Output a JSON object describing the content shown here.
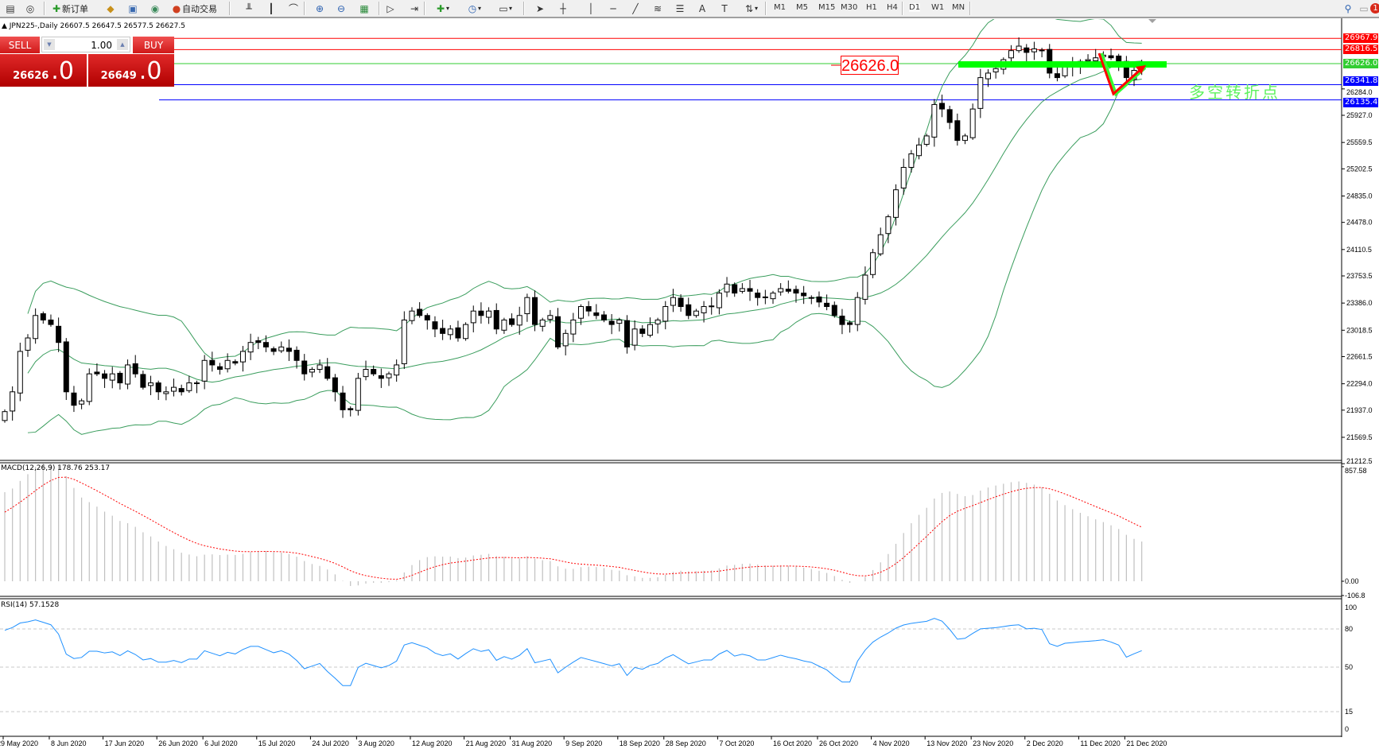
{
  "toolbar": {
    "new_order": "新订单",
    "auto_trading": "自动交易",
    "timeframes": [
      "M1",
      "M5",
      "M15",
      "M30",
      "H1",
      "H4",
      "D1",
      "W1",
      "MN"
    ],
    "active_timeframe": "D1",
    "notification_count": "1",
    "icons": [
      "new-chart-icon",
      "profiles-icon",
      "new-order-icon",
      "market-watch-icon",
      "navigator-icon",
      "signals-icon",
      "auto-trading-icon",
      "bar-chart-icon",
      "candlestick-icon",
      "line-chart-icon",
      "zoom-in-icon",
      "zoom-out-icon",
      "tile-windows-icon",
      "auto-scroll-icon",
      "chart-shift-icon",
      "indicators-icon",
      "periods-icon",
      "templates-icon",
      "cursor-icon",
      "crosshair-icon",
      "vertical-line-icon",
      "horizontal-line-icon",
      "trendline-icon",
      "fibonacci-icon",
      "channel-icon",
      "text-icon",
      "text-label-icon",
      "arrows-icon",
      "search-icon",
      "notifications-icon"
    ]
  },
  "chart": {
    "title": "▲ JPN225-,Daily  26607.5 26647.5 26577.5 26627.5",
    "symbol": "JPN225-",
    "period": "Daily",
    "ohlc": {
      "open": 26607.5,
      "high": 26647.5,
      "low": 26577.5,
      "close": 26627.5
    }
  },
  "trade_panel": {
    "sell_label": "SELL",
    "buy_label": "BUY",
    "lot": "1.00",
    "sell_small": "26626",
    "sell_big": ".0",
    "buy_small": "26649",
    "buy_big": ".0",
    "color": "#d01818"
  },
  "levels": [
    {
      "value": "26967.9",
      "color": "#ff0000"
    },
    {
      "value": "26816.5",
      "color": "#ff0000"
    },
    {
      "value": "26626.0",
      "color": "#32cd32"
    },
    {
      "value": "26341.8",
      "color": "#0000ff"
    },
    {
      "value": "26135.4",
      "color": "#0000ff"
    }
  ],
  "annotations": {
    "price_label": "26626.0",
    "text": "多空转折点",
    "zone_color": "#00ff00",
    "arrow_color": "#ff0000"
  },
  "price_axis": [
    "26284.0",
    "25927.0",
    "25559.5",
    "25202.5",
    "24835.0",
    "24478.0",
    "24110.5",
    "23753.5",
    "23386.0",
    "23018.5",
    "22661.5",
    "22294.0",
    "21937.0",
    "21569.5",
    "21212.5"
  ],
  "macd": {
    "label": "MACD(12,26,9) 178.76 253.17",
    "axis": [
      "857.58",
      "0.00",
      "-106.8"
    ],
    "signal_color": "#ff0000",
    "hist_color": "#c0c0c0"
  },
  "rsi": {
    "label": "RSI(14) 57.1528",
    "axis": [
      "100",
      "80",
      "50",
      "15",
      "0"
    ],
    "color": "#1e90ff"
  },
  "date_axis": [
    "29 May 2020",
    "8 Jun 2020",
    "17 Jun 2020",
    "26 Jun 2020",
    "6 Jul 2020",
    "15 Jul 2020",
    "24 Jul 2020",
    "3 Aug 2020",
    "12 Aug 2020",
    "21 Aug 2020",
    "31 Aug 2020",
    "9 Sep 2020",
    "18 Sep 2020",
    "28 Sep 2020",
    "7 Oct 2020",
    "16 Oct 2020",
    "26 Oct 2020",
    "4 Nov 2020",
    "13 Nov 2020",
    "23 Nov 2020",
    "2 Dec 2020",
    "11 Dec 2020",
    "21 Dec 2020"
  ],
  "chart_data": {
    "type": "candlestick",
    "first_date": "29 May 2020",
    "indicators": [
      "Bollinger Bands(20,2)",
      "MACD(12,26,9)",
      "RSI(14)"
    ],
    "band_color": "#3a9d5d",
    "closes": [
      21917,
      22185,
      22732,
      22914,
      23218,
      23157,
      23096,
      22853,
      22185,
      22003,
      22063,
      22428,
      22428,
      22367,
      22428,
      22306,
      22549,
      22428,
      22246,
      22306,
      22185,
      22185,
      22246,
      22185,
      22306,
      22306,
      22610,
      22549,
      22489,
      22610,
      22574,
      22732,
      22853,
      22853,
      22792,
      22732,
      22792,
      22732,
      22610,
      22428,
      22489,
      22549,
      22367,
      22185,
      21942,
      21942,
      22367,
      22489,
      22428,
      22367,
      22428,
      22549,
      23157,
      23278,
      23218,
      23157,
      23035,
      22975,
      23035,
      22914,
      23096,
      23278,
      23218,
      23278,
      23035,
      23157,
      23096,
      23218,
      23461,
      23096,
      23157,
      23218,
      22792,
      22975,
      23157,
      23339,
      23278,
      23218,
      23157,
      23096,
      23157,
      22792,
      23035,
      22975,
      23096,
      23157,
      23339,
      23461,
      23339,
      23218,
      23278,
      23339,
      23339,
      23521,
      23643,
      23521,
      23582,
      23546,
      23461,
      23461,
      23521,
      23582,
      23546,
      23521,
      23485,
      23461,
      23400,
      23339,
      23218,
      23096,
      23096,
      23461,
      23764,
      24068,
      24311,
      24554,
      24919,
      25222,
      25405,
      25526,
      25648,
      26073,
      26012,
      25830,
      25587,
      25648,
      26012,
      26437,
      26498,
      26559,
      26680,
      26802,
      26863,
      26778,
      26826,
      26802,
      26498,
      26437,
      26583,
      26620,
      26656,
      26680,
      26705,
      26741,
      26705,
      26656,
      26437,
      26535,
      26627.5
    ]
  }
}
